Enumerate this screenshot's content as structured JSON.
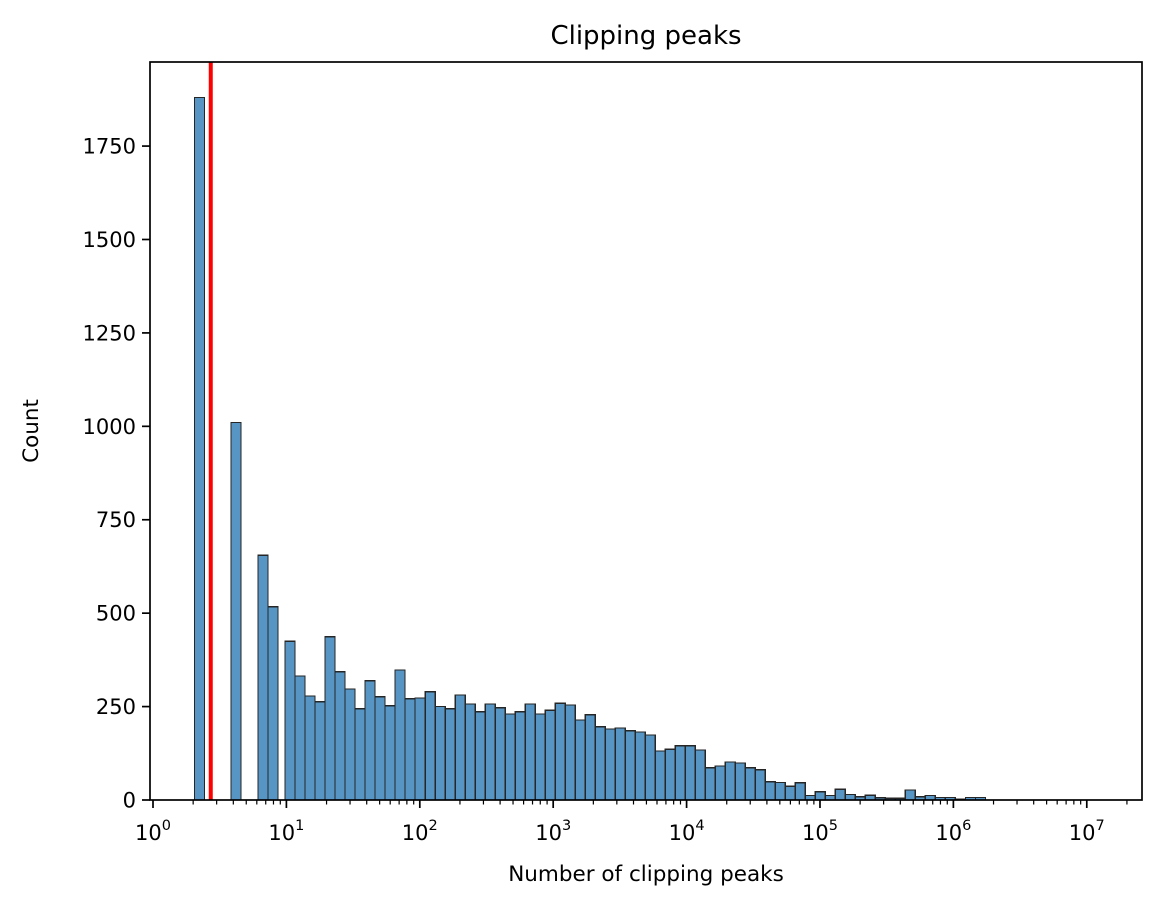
{
  "chart_data": {
    "type": "bar",
    "subtype": "histogram-log-x",
    "title": "Clipping peaks",
    "xlabel": "Number of clipping peaks",
    "ylabel": "Count",
    "x_scale": "log10",
    "xlim_log10": [
      -0.0225,
      7.414
    ],
    "ylim": [
      0,
      1975
    ],
    "y_ticks": [
      0,
      250,
      500,
      750,
      1000,
      1250,
      1500,
      1750
    ],
    "x_major_tick_exponents": [
      0,
      1,
      2,
      3,
      4,
      5,
      6,
      7
    ],
    "x_tick_base": "10",
    "grid": false,
    "legend": null,
    "red_line": {
      "x": 2.71,
      "log10_x": 0.433
    },
    "colors": {
      "bar_fill": "#5795C5",
      "bar_edge": "#262626",
      "ref_line": "#FF0000",
      "axis": "#000000",
      "background": "#FFFFFF"
    },
    "bars": [
      [
        0.312,
        0.387,
        1880
      ],
      [
        0.585,
        0.66,
        1010
      ],
      [
        0.787,
        0.862,
        655
      ],
      [
        0.862,
        0.937,
        517
      ],
      [
        0.99,
        1.065,
        425
      ],
      [
        1.065,
        1.14,
        332
      ],
      [
        1.14,
        1.215,
        278
      ],
      [
        1.215,
        1.29,
        263
      ],
      [
        1.29,
        1.365,
        437
      ],
      [
        1.365,
        1.44,
        343
      ],
      [
        1.44,
        1.515,
        297
      ],
      [
        1.515,
        1.59,
        244
      ],
      [
        1.59,
        1.665,
        319
      ],
      [
        1.665,
        1.74,
        276
      ],
      [
        1.74,
        1.815,
        252
      ],
      [
        1.815,
        1.89,
        348
      ],
      [
        1.89,
        1.965,
        271
      ],
      [
        1.965,
        2.04,
        273
      ],
      [
        2.04,
        2.115,
        290
      ],
      [
        2.115,
        2.19,
        250
      ],
      [
        2.19,
        2.265,
        244
      ],
      [
        2.265,
        2.34,
        281
      ],
      [
        2.34,
        2.415,
        257
      ],
      [
        2.415,
        2.49,
        236
      ],
      [
        2.49,
        2.565,
        257
      ],
      [
        2.565,
        2.64,
        247
      ],
      [
        2.64,
        2.715,
        230
      ],
      [
        2.715,
        2.79,
        236
      ],
      [
        2.79,
        2.865,
        257
      ],
      [
        2.865,
        2.94,
        230
      ],
      [
        2.94,
        3.015,
        240
      ],
      [
        3.015,
        3.09,
        259
      ],
      [
        3.09,
        3.165,
        254
      ],
      [
        3.165,
        3.24,
        214
      ],
      [
        3.24,
        3.315,
        228
      ],
      [
        3.315,
        3.39,
        196
      ],
      [
        3.39,
        3.465,
        190
      ],
      [
        3.465,
        3.54,
        193
      ],
      [
        3.54,
        3.615,
        185
      ],
      [
        3.615,
        3.69,
        182
      ],
      [
        3.69,
        3.765,
        174
      ],
      [
        3.765,
        3.84,
        131
      ],
      [
        3.84,
        3.915,
        136
      ],
      [
        3.915,
        3.99,
        145
      ],
      [
        3.99,
        4.065,
        145
      ],
      [
        4.065,
        4.14,
        134
      ],
      [
        4.14,
        4.215,
        86
      ],
      [
        4.215,
        4.29,
        91
      ],
      [
        4.29,
        4.365,
        102
      ],
      [
        4.365,
        4.44,
        99
      ],
      [
        4.44,
        4.515,
        86
      ],
      [
        4.515,
        4.59,
        81
      ],
      [
        4.59,
        4.665,
        49
      ],
      [
        4.665,
        4.74,
        47
      ],
      [
        4.74,
        4.815,
        37
      ],
      [
        4.815,
        4.89,
        46
      ],
      [
        4.89,
        4.965,
        12
      ],
      [
        4.965,
        5.04,
        22
      ],
      [
        5.04,
        5.115,
        12
      ],
      [
        5.115,
        5.19,
        29
      ],
      [
        5.19,
        5.265,
        15
      ],
      [
        5.265,
        5.34,
        9
      ],
      [
        5.34,
        5.415,
        13
      ],
      [
        5.415,
        5.49,
        6
      ],
      [
        5.49,
        5.565,
        5
      ],
      [
        5.565,
        5.64,
        5
      ],
      [
        5.64,
        5.715,
        27
      ],
      [
        5.715,
        5.79,
        9
      ],
      [
        5.79,
        5.865,
        12
      ],
      [
        5.865,
        5.94,
        7
      ],
      [
        5.94,
        6.015,
        7
      ],
      [
        6.015,
        6.09,
        3
      ],
      [
        6.09,
        6.165,
        7
      ],
      [
        6.165,
        6.24,
        7
      ]
    ]
  }
}
